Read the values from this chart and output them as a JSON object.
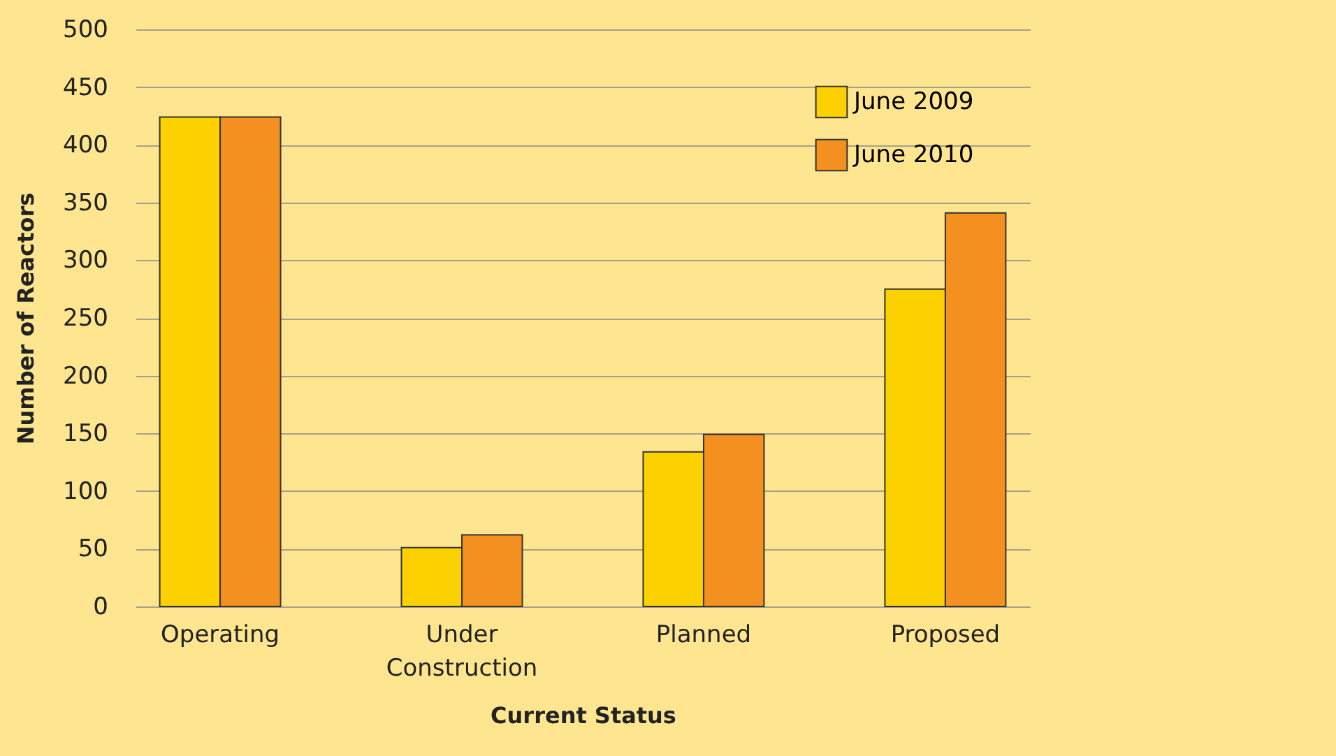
{
  "chart_data": {
    "type": "bar",
    "xlabel": "Current Status",
    "ylabel": "Number of Reactors",
    "categories": [
      "Operating",
      "Under Construction",
      "Planned",
      "Proposed"
    ],
    "series": [
      {
        "name": "June 2009",
        "color": "#fdd000",
        "values": [
          424,
          51,
          134,
          275
        ]
      },
      {
        "name": "June 2010",
        "color": "#f39020",
        "values": [
          424,
          62,
          149,
          341
        ]
      }
    ],
    "ylim": [
      0,
      500
    ],
    "yticks": [
      0,
      50,
      100,
      150,
      200,
      250,
      300,
      350,
      400,
      450,
      500
    ],
    "grid": "y",
    "legend": "top right"
  }
}
